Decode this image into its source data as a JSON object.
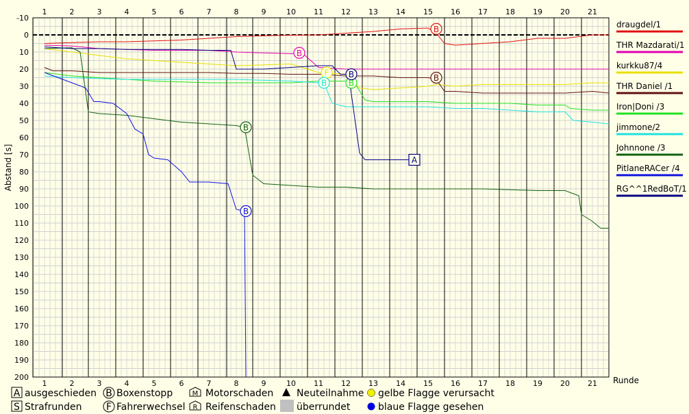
{
  "chart_data": {
    "type": "line",
    "ylabel": "Abstand [s]",
    "xlabel": "Runde",
    "x_range": [
      1,
      21.65
    ],
    "ylim": [
      -10,
      200
    ],
    "yticks": [
      -10,
      0,
      10,
      20,
      30,
      40,
      50,
      60,
      70,
      80,
      90,
      100,
      110,
      120,
      130,
      140,
      150,
      160,
      170,
      180,
      190,
      200
    ],
    "lap_ticks": [
      1,
      2,
      3,
      4,
      5,
      6,
      7,
      8,
      9,
      10,
      11,
      12,
      13,
      14,
      15,
      16,
      17,
      18,
      19,
      20,
      21
    ],
    "series": [
      {
        "name": "draugdel/1",
        "color": "#e01010",
        "points": [
          [
            1,
            5
          ],
          [
            2,
            4.5
          ],
          [
            3,
            4
          ],
          [
            4,
            4
          ],
          [
            5,
            3.5
          ],
          [
            6,
            3
          ],
          [
            7,
            2
          ],
          [
            8,
            1
          ],
          [
            9,
            0.5
          ],
          [
            10,
            0.2
          ],
          [
            11,
            0
          ],
          [
            12,
            -1
          ],
          [
            13,
            -2
          ],
          [
            14,
            -3.5
          ],
          [
            15,
            -4
          ],
          [
            15.3,
            -1
          ],
          [
            15.6,
            5
          ],
          [
            16,
            6
          ],
          [
            17,
            5
          ],
          [
            18,
            4
          ],
          [
            19,
            2
          ],
          [
            20,
            2
          ],
          [
            21,
            0
          ],
          [
            21.6,
            0
          ]
        ],
        "markers": [
          {
            "x": 15.3,
            "y": -3.5,
            "label": "B"
          }
        ]
      },
      {
        "name": "THR Mazdarati/1",
        "color": "#e000b0",
        "points": [
          [
            1,
            6
          ],
          [
            2,
            6.5
          ],
          [
            3,
            8
          ],
          [
            4,
            8.5
          ],
          [
            5,
            9
          ],
          [
            6,
            9
          ],
          [
            7,
            9
          ],
          [
            8,
            10
          ],
          [
            9,
            10.5
          ],
          [
            10,
            11
          ],
          [
            10.4,
            10.5
          ],
          [
            11,
            19
          ],
          [
            12,
            20
          ],
          [
            13,
            20
          ],
          [
            14,
            20
          ],
          [
            15,
            20
          ],
          [
            16,
            20
          ],
          [
            17,
            20
          ],
          [
            18,
            20
          ],
          [
            19,
            20
          ],
          [
            20,
            20
          ],
          [
            21,
            20
          ],
          [
            21.6,
            20
          ]
        ],
        "markers": [
          {
            "x": 10.3,
            "y": 10.5,
            "label": "B"
          }
        ]
      },
      {
        "name": "kurkku87/4",
        "color": "#e8e000",
        "points": [
          [
            1,
            8
          ],
          [
            2,
            10
          ],
          [
            3,
            12
          ],
          [
            4,
            14
          ],
          [
            5,
            15
          ],
          [
            6,
            16
          ],
          [
            7,
            17
          ],
          [
            8,
            18
          ],
          [
            9,
            17.5
          ],
          [
            10,
            17
          ],
          [
            11,
            22
          ],
          [
            12,
            23
          ],
          [
            12.5,
            31
          ],
          [
            13,
            32
          ],
          [
            14,
            31
          ],
          [
            15,
            30
          ],
          [
            15.3,
            29
          ],
          [
            16,
            30
          ],
          [
            17,
            29
          ],
          [
            18,
            29
          ],
          [
            19,
            29
          ],
          [
            20,
            29
          ],
          [
            21,
            28
          ],
          [
            21.6,
            28
          ]
        ],
        "markers": [
          {
            "x": 11.3,
            "y": 22,
            "label": "F"
          }
        ]
      },
      {
        "name": "THR Daniel /1",
        "color": "#601010",
        "points": [
          [
            1,
            19
          ],
          [
            1.3,
            21
          ],
          [
            2,
            21
          ],
          [
            3,
            22
          ],
          [
            4,
            22
          ],
          [
            5,
            22
          ],
          [
            6,
            22
          ],
          [
            7,
            22
          ],
          [
            8,
            22.5
          ],
          [
            9,
            22.5
          ],
          [
            10,
            23
          ],
          [
            11,
            23
          ],
          [
            12,
            24
          ],
          [
            13,
            24
          ],
          [
            14,
            25
          ],
          [
            15,
            25
          ],
          [
            15.3,
            26
          ],
          [
            15.6,
            33
          ],
          [
            16,
            33
          ],
          [
            17,
            34
          ],
          [
            18,
            34
          ],
          [
            19,
            34
          ],
          [
            20,
            34
          ],
          [
            21,
            33
          ],
          [
            21.6,
            34
          ]
        ],
        "markers": [
          {
            "x": 15.3,
            "y": 25,
            "label": "B"
          }
        ]
      },
      {
        "name": "Iron|Doni /3",
        "color": "#20e020",
        "points": [
          [
            1,
            22
          ],
          [
            2,
            24
          ],
          [
            3,
            25
          ],
          [
            4,
            26
          ],
          [
            5,
            27
          ],
          [
            6,
            27.5
          ],
          [
            7,
            28
          ],
          [
            8,
            28
          ],
          [
            9,
            28
          ],
          [
            10,
            28
          ],
          [
            11,
            27
          ],
          [
            12,
            27
          ],
          [
            12.4,
            30
          ],
          [
            12.7,
            38
          ],
          [
            13,
            39
          ],
          [
            14,
            39
          ],
          [
            15,
            39
          ],
          [
            16,
            40
          ],
          [
            17,
            40
          ],
          [
            18,
            40
          ],
          [
            19,
            41
          ],
          [
            20,
            41
          ],
          [
            20.2,
            43
          ],
          [
            21,
            44
          ],
          [
            21.6,
            44
          ]
        ],
        "markers": [
          {
            "x": 12.2,
            "y": 28,
            "label": "B"
          }
        ]
      },
      {
        "name": "jimmone/2",
        "color": "#20e0e0",
        "points": [
          [
            1,
            24
          ],
          [
            2,
            25
          ],
          [
            3,
            25.5
          ],
          [
            4,
            26
          ],
          [
            5,
            26
          ],
          [
            6,
            26
          ],
          [
            7,
            26
          ],
          [
            8,
            26
          ],
          [
            9,
            26.5
          ],
          [
            10,
            27
          ],
          [
            11,
            28
          ],
          [
            11.2,
            28
          ],
          [
            11.5,
            40
          ],
          [
            12,
            42
          ],
          [
            13,
            42
          ],
          [
            14,
            42
          ],
          [
            15,
            42
          ],
          [
            16,
            43
          ],
          [
            17,
            43
          ],
          [
            18,
            44
          ],
          [
            19,
            45
          ],
          [
            20,
            45
          ],
          [
            20.3,
            50
          ],
          [
            21,
            51
          ],
          [
            21.6,
            52
          ]
        ],
        "markers": [
          {
            "x": 11.2,
            "y": 28,
            "label": "B"
          }
        ]
      },
      {
        "name": "Johnnone /3",
        "color": "#106010",
        "points": [
          [
            1,
            8
          ],
          [
            2,
            7.5
          ],
          [
            2.3,
            10
          ],
          [
            2.6,
            45
          ],
          [
            3,
            46
          ],
          [
            4,
            47
          ],
          [
            5,
            49
          ],
          [
            6,
            51
          ],
          [
            7,
            52
          ],
          [
            8,
            53
          ],
          [
            8.3,
            54
          ],
          [
            8.6,
            82
          ],
          [
            9,
            87
          ],
          [
            10,
            88
          ],
          [
            11,
            89
          ],
          [
            12,
            89
          ],
          [
            13,
            90
          ],
          [
            14,
            90
          ],
          [
            15,
            90
          ],
          [
            16,
            90
          ],
          [
            17,
            90
          ],
          [
            18,
            90.5
          ],
          [
            19,
            91
          ],
          [
            20,
            91
          ],
          [
            20.5,
            94
          ],
          [
            20.6,
            105
          ],
          [
            21,
            109
          ],
          [
            21.3,
            113
          ],
          [
            21.6,
            113
          ]
        ],
        "markers": [
          {
            "x": 8.35,
            "y": 54,
            "label": "B"
          }
        ]
      },
      {
        "name": "PitlaneRACer /4",
        "color": "#1010e0",
        "points": [
          [
            1,
            22
          ],
          [
            2,
            28
          ],
          [
            2.5,
            31
          ],
          [
            2.8,
            39
          ],
          [
            3,
            39
          ],
          [
            3.5,
            40
          ],
          [
            4,
            46
          ],
          [
            4.3,
            55
          ],
          [
            4.6,
            58
          ],
          [
            4.8,
            70
          ],
          [
            5,
            72
          ],
          [
            5.5,
            73
          ],
          [
            6,
            80
          ],
          [
            6.3,
            86
          ],
          [
            7,
            86
          ],
          [
            7.7,
            87
          ],
          [
            8,
            102
          ],
          [
            8.3,
            103
          ],
          [
            8.35,
            200
          ]
        ],
        "markers": [
          {
            "x": 8.35,
            "y": 103,
            "label": "B"
          }
        ]
      },
      {
        "name": "RG^^1RedBoT/1",
        "color": "#000080",
        "points": [
          [
            1,
            7
          ],
          [
            2,
            8
          ],
          [
            3,
            8
          ],
          [
            4,
            8.5
          ],
          [
            5,
            8.5
          ],
          [
            6,
            8.5
          ],
          [
            7,
            9
          ],
          [
            7.8,
            9
          ],
          [
            8,
            20
          ],
          [
            9,
            20
          ],
          [
            10,
            19
          ],
          [
            11,
            18
          ],
          [
            11.5,
            18
          ],
          [
            11.8,
            23
          ],
          [
            12.1,
            23
          ],
          [
            12.5,
            69
          ],
          [
            12.7,
            73
          ],
          [
            13,
            73
          ],
          [
            14,
            73
          ],
          [
            14.5,
            73
          ]
        ],
        "markers": [
          {
            "x": 12.2,
            "y": 23,
            "label": "B"
          },
          {
            "x": 14.5,
            "y": 73,
            "label": "A",
            "square": true
          }
        ]
      }
    ]
  },
  "footer": {
    "ausgeschieden": "ausgeschieden",
    "boxenstopp": "Boxenstopp",
    "motorschaden": "Motorschaden",
    "neuteilnahme": "Neuteilnahme",
    "gelbe_flagge": "gelbe Flagge verursacht",
    "strafrunden": "Strafrunden",
    "fahrerwechsel": "Fahrerwechsel",
    "reifenschaden": "Reifenschaden",
    "ueberrundet": "überrundet",
    "blaue_flagge": "blaue Flagge gesehen",
    "sym_a": "A",
    "sym_b": "B",
    "sym_m": "M",
    "sym_s": "S",
    "sym_f": "F",
    "sym_r": "R"
  },
  "colors": {
    "background": "#ffffe8",
    "grid": "#c8c8c8",
    "yellow_flag": "#f0f000",
    "blue_flag": "#0000e0",
    "lapped": "#c0c0c0"
  }
}
